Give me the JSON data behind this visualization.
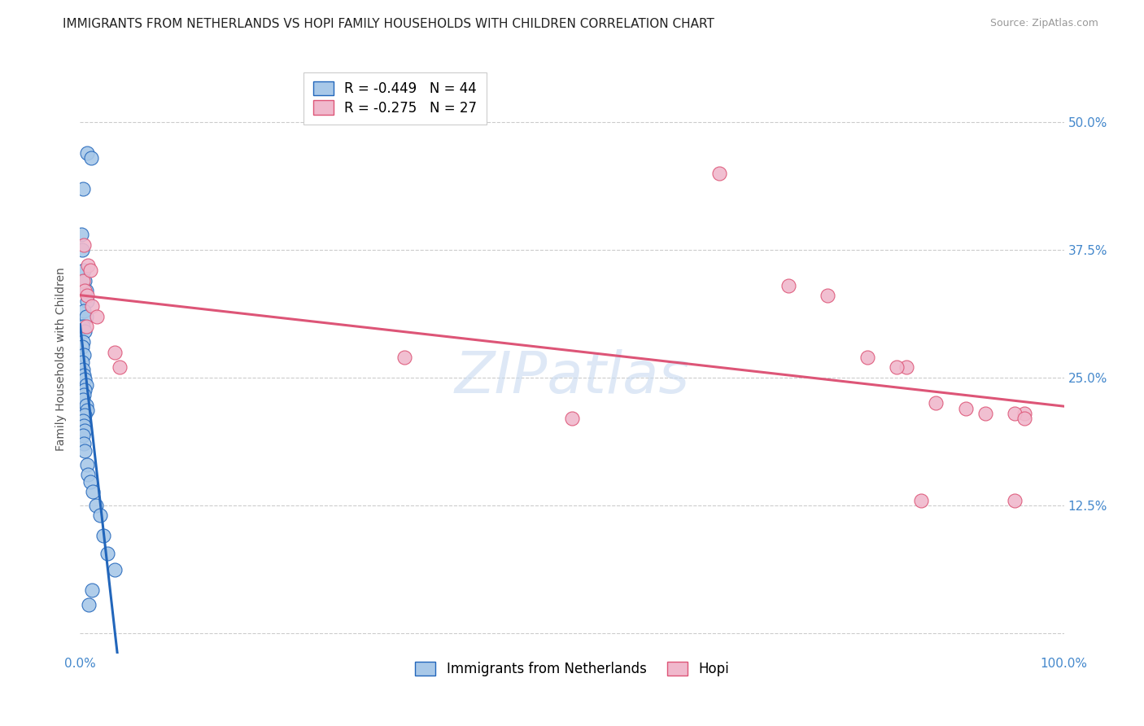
{
  "title": "IMMIGRANTS FROM NETHERLANDS VS HOPI FAMILY HOUSEHOLDS WITH CHILDREN CORRELATION CHART",
  "source": "Source: ZipAtlas.com",
  "ylabel": "Family Households with Children",
  "legend_label_1": "Immigrants from Netherlands",
  "legend_label_2": "Hopi",
  "legend_R1": "R = -0.449",
  "legend_N1": "N = 44",
  "legend_R2": "R = -0.275",
  "legend_N2": "N = 27",
  "xlim": [
    0.0,
    1.0
  ],
  "ylim": [
    -0.02,
    0.5556
  ],
  "yticks": [
    0.0,
    0.125,
    0.25,
    0.375,
    0.5
  ],
  "ytick_labels": [
    "",
    "12.5%",
    "25.0%",
    "37.5%",
    "50.0%"
  ],
  "xticks": [
    0.0,
    0.125,
    0.25,
    0.375,
    0.5,
    0.625,
    0.75,
    0.875,
    1.0
  ],
  "xtick_labels": [
    "0.0%",
    "",
    "",
    "",
    "",
    "",
    "",
    "",
    "100.0%"
  ],
  "color_blue": "#a8c8e8",
  "color_pink": "#f0b8cc",
  "color_blue_line": "#2266bb",
  "color_pink_line": "#dd5577",
  "color_axis_labels": "#4488cc",
  "watermark_text": "ZIPatlas",
  "watermark_color": "#c8daf0",
  "background_color": "#ffffff",
  "grid_color": "#cccccc",
  "blue_x": [
    0.007,
    0.011,
    0.003,
    0.001,
    0.002,
    0.004,
    0.005,
    0.006,
    0.007,
    0.004,
    0.006,
    0.003,
    0.005,
    0.003,
    0.002,
    0.004,
    0.002,
    0.003,
    0.004,
    0.005,
    0.006,
    0.005,
    0.004,
    0.003,
    0.006,
    0.007,
    0.005,
    0.003,
    0.004,
    0.005,
    0.003,
    0.004,
    0.005,
    0.007,
    0.008,
    0.01,
    0.013,
    0.016,
    0.02,
    0.024,
    0.028,
    0.035,
    0.012,
    0.009
  ],
  "blue_y": [
    0.47,
    0.465,
    0.435,
    0.39,
    0.375,
    0.355,
    0.345,
    0.335,
    0.325,
    0.315,
    0.31,
    0.3,
    0.295,
    0.285,
    0.28,
    0.272,
    0.265,
    0.258,
    0.252,
    0.248,
    0.243,
    0.238,
    0.233,
    0.228,
    0.223,
    0.218,
    0.213,
    0.208,
    0.203,
    0.198,
    0.193,
    0.185,
    0.178,
    0.165,
    0.155,
    0.148,
    0.138,
    0.125,
    0.115,
    0.095,
    0.078,
    0.062,
    0.042,
    0.028
  ],
  "pink_x": [
    0.003,
    0.005,
    0.007,
    0.012,
    0.017,
    0.004,
    0.008,
    0.01,
    0.006,
    0.035,
    0.04,
    0.33,
    0.5,
    0.65,
    0.72,
    0.76,
    0.8,
    0.84,
    0.87,
    0.9,
    0.92,
    0.95,
    0.96,
    0.855,
    0.83,
    0.95,
    0.96
  ],
  "pink_y": [
    0.345,
    0.335,
    0.33,
    0.32,
    0.31,
    0.38,
    0.36,
    0.355,
    0.3,
    0.275,
    0.26,
    0.27,
    0.21,
    0.45,
    0.34,
    0.33,
    0.27,
    0.26,
    0.225,
    0.22,
    0.215,
    0.13,
    0.215,
    0.13,
    0.26,
    0.215,
    0.21
  ],
  "title_fontsize": 11,
  "source_fontsize": 9,
  "axis_label_fontsize": 10,
  "tick_fontsize": 11,
  "legend_fontsize": 12,
  "watermark_fontsize": 52
}
